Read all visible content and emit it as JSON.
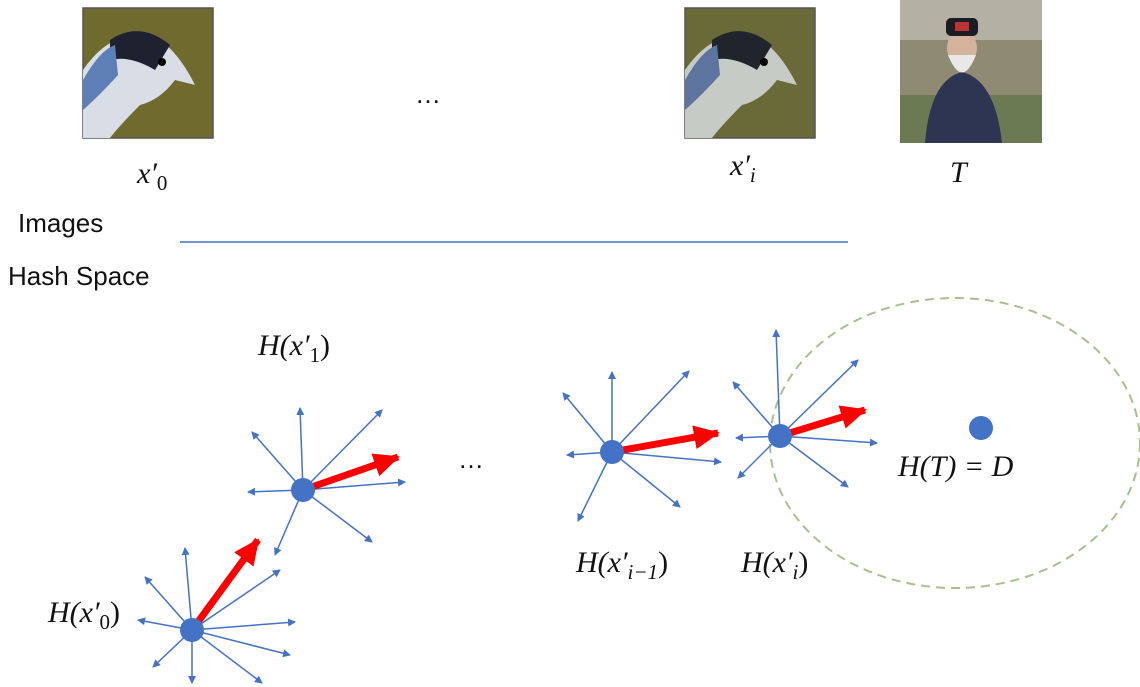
{
  "images": {
    "labels": [
      {
        "base": "x′",
        "sub": "0"
      },
      {
        "base": "x′",
        "sub": "i"
      },
      {
        "base": "T",
        "sub": ""
      }
    ],
    "ellipsis": "…"
  },
  "regions": {
    "top": "Images",
    "bottom": "Hash Space"
  },
  "hash_space": {
    "nodes": [
      {
        "pre": "H(x′",
        "sub": "0",
        "post": ")"
      },
      {
        "pre": "H(x′",
        "sub": "1",
        "post": ")"
      },
      {
        "pre": "H(x′",
        "sub": "i−1",
        "post": ")"
      },
      {
        "pre": "H(x′",
        "sub": "i",
        "post": ")"
      }
    ],
    "target": "H(T) = D",
    "ellipsis": "…"
  }
}
